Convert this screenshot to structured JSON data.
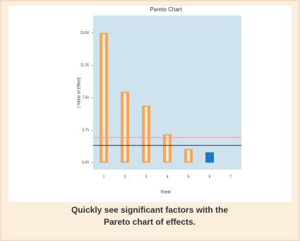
{
  "chart_data": {
    "type": "bar",
    "title": "Pareto Chart",
    "y_label": "| Value of Effect|",
    "x_label": "Rank",
    "categories": [
      "1",
      "2",
      "3",
      "4",
      "5",
      "6",
      "7"
    ],
    "values": [
      15,
      8.2,
      6.6,
      3.3,
      1.6,
      1.2,
      null
    ],
    "colors": [
      "#f2a65e",
      "#f2a65e",
      "#f2a65e",
      "#f2a65e",
      "#f2a65e",
      "#1f78c8",
      "#f2a65e"
    ],
    "ylim": [
      -0.8,
      17
    ],
    "yticks": [
      {
        "value": 0,
        "label": "0.00"
      },
      {
        "value": 3.75,
        "label": "3.75"
      },
      {
        "value": 7.5,
        "label": "7.50"
      },
      {
        "value": 11.25,
        "label": "11.25"
      },
      {
        "value": 15,
        "label": "15.00"
      }
    ],
    "reference_lines": [
      {
        "value": 2.9,
        "color": "#e8a0a0"
      },
      {
        "value": 2.0,
        "color": "#333333"
      }
    ],
    "plot_color": "#cfe3ef",
    "caption": [
      "Quickly see significant factors with the",
      "Pareto chart of effects."
    ]
  }
}
